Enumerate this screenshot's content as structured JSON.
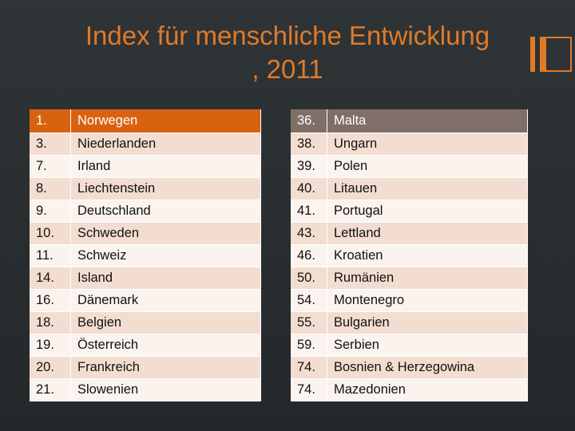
{
  "title": {
    "line1": "Index für menschliche Entwicklung",
    "line2": ", 2011"
  },
  "left_table": {
    "rows": [
      {
        "rank": "1.",
        "country": "Norwegen"
      },
      {
        "rank": "3.",
        "country": "Niederlanden"
      },
      {
        "rank": "7.",
        "country": "Irland"
      },
      {
        "rank": "8.",
        "country": "Liechtenstein"
      },
      {
        "rank": "9.",
        "country": "Deutschland"
      },
      {
        "rank": "10.",
        "country": "Schweden"
      },
      {
        "rank": "11.",
        "country": "Schweiz"
      },
      {
        "rank": "14.",
        "country": "Island"
      },
      {
        "rank": "16.",
        "country": "Dänemark"
      },
      {
        "rank": "18.",
        "country": "Belgien"
      },
      {
        "rank": "19.",
        "country": "Österreich"
      },
      {
        "rank": "20.",
        "country": "Frankreich"
      },
      {
        "rank": "21.",
        "country": "Slowenien"
      }
    ]
  },
  "right_table": {
    "rows": [
      {
        "rank": "36.",
        "country": "Malta"
      },
      {
        "rank": "38.",
        "country": "Ungarn"
      },
      {
        "rank": "39.",
        "country": "Polen"
      },
      {
        "rank": "40.",
        "country": "Litauen"
      },
      {
        "rank": "41.",
        "country": "Portugal"
      },
      {
        "rank": "43.",
        "country": "Lettland"
      },
      {
        "rank": "46.",
        "country": "Kroatien"
      },
      {
        "rank": "50.",
        "country": "Rumänien"
      },
      {
        "rank": "54.",
        "country": "Montenegro"
      },
      {
        "rank": "55.",
        "country": "Bulgarien"
      },
      {
        "rank": "59.",
        "country": "Serbien"
      },
      {
        "rank": "74.",
        "country": "Bosnien & Herzegowina"
      },
      {
        "rank": "74.",
        "country": "Mazedonien"
      }
    ]
  },
  "colors": {
    "accent": "#e07a28",
    "left_header": "#d9620f",
    "right_header": "#7f6f68",
    "background": "#2f3437"
  }
}
